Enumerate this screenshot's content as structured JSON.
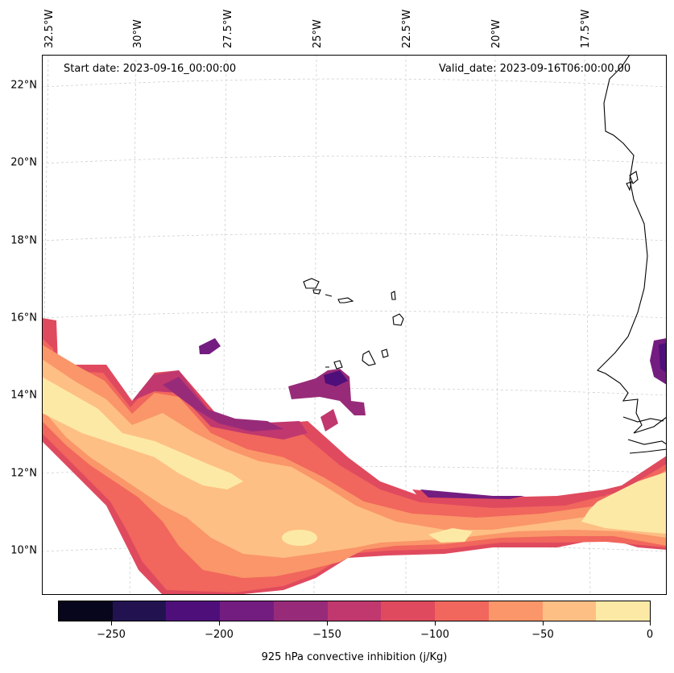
{
  "map": {
    "start_date": "Start date: 2023-09-16_00:00:00",
    "valid_date": "Valid_date: 2023-09-16T06:00:00.00",
    "longitude_labels": [
      "32.5°W",
      "30°W",
      "27.5°W",
      "25°W",
      "22.5°W",
      "20°W",
      "17.5°W"
    ],
    "latitude_labels": [
      "22°N",
      "20°N",
      "18°N",
      "16°N",
      "14°N",
      "12°N",
      "10°N"
    ]
  },
  "colorbar": {
    "title": "925 hPa convective inhibition (j/Kg)",
    "tick_labels": [
      "−250",
      "−200",
      "−150",
      "−100",
      "−50",
      "0"
    ],
    "levels": [
      -275,
      -250,
      -225,
      -200,
      -175,
      -150,
      -125,
      -100,
      -75,
      -50,
      -25,
      0
    ],
    "colors": [
      "#07061c",
      "#221350",
      "#4e0f7b",
      "#741d80",
      "#982b79",
      "#c0386e",
      "#e04a5e",
      "#f1665d",
      "#fa9669",
      "#febf84",
      "#fde9a6"
    ]
  }
}
